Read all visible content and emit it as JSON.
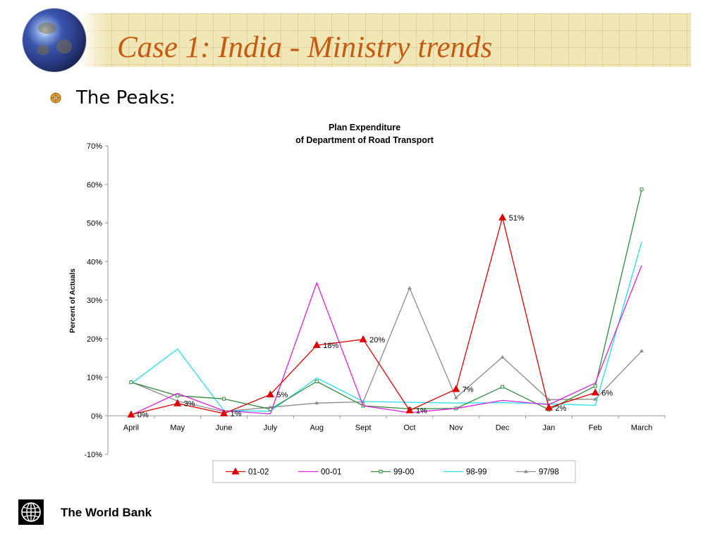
{
  "slide": {
    "title": "Case 1: India -  Ministry trends",
    "bullet": "The Peaks:",
    "footer": "The World Bank"
  },
  "colors": {
    "title": "#c55a11",
    "band": "#f1e7b6"
  },
  "icons": {
    "globe": "globe-icon",
    "bullet": "sun-bullet-icon",
    "logo": "world-bank-logo-icon"
  },
  "chart_data": {
    "type": "line",
    "title": [
      "Plan Expenditure",
      "of Department of Road Transport"
    ],
    "xlabel": "",
    "ylabel": "Percent of Actuals",
    "categories": [
      "April",
      "May",
      "June",
      "July",
      "Aug",
      "Sept",
      "Oct",
      "Nov",
      "Dec",
      "Jan",
      "Feb",
      "March"
    ],
    "ylim": [
      -10,
      70
    ],
    "yticks": [
      -10,
      0,
      10,
      20,
      30,
      40,
      50,
      60,
      70
    ],
    "ytick_labels": [
      "-10%",
      "0%",
      "10%",
      "20%",
      "30%",
      "40%",
      "50%",
      "60%",
      "70%"
    ],
    "grid": false,
    "legend_position": "bottom",
    "series": [
      {
        "name": "01-02",
        "color": "#e00000",
        "marker": "triangle",
        "values": [
          0.3,
          3.2,
          0.6,
          5.5,
          18.3,
          19.8,
          1.4,
          6.9,
          51.4,
          2.1,
          6.0,
          null
        ],
        "labels": [
          "0%",
          "3%",
          "1%",
          "5%",
          "18%",
          "20%",
          "1%",
          "7%",
          "51%",
          "2%",
          "6%",
          null
        ]
      },
      {
        "name": "00-01",
        "color": "#e020e0",
        "marker": "none",
        "values": [
          0.2,
          5.8,
          1.3,
          0.5,
          34.5,
          2.6,
          0.8,
          1.9,
          4.0,
          2.9,
          8.5,
          39.0
        ]
      },
      {
        "name": "99-00",
        "color": "#2e8b3e",
        "marker": "square",
        "values": [
          8.7,
          5.2,
          4.4,
          1.7,
          8.9,
          2.6,
          1.8,
          1.9,
          7.5,
          1.6,
          7.7,
          58.7
        ]
      },
      {
        "name": "98-99",
        "color": "#22e0ee",
        "marker": "none",
        "values": [
          8.3,
          17.3,
          1.3,
          1.2,
          9.8,
          3.7,
          3.5,
          3.3,
          3.4,
          3.1,
          2.7,
          45.1
        ]
      },
      {
        "name": "97/98",
        "color": "#8c8c8c",
        "marker": "triangle-small",
        "values": [
          8.8,
          3.8,
          1.1,
          2.2,
          3.3,
          3.6,
          33.1,
          4.7,
          15.2,
          4.2,
          4.3,
          16.8
        ]
      }
    ]
  }
}
